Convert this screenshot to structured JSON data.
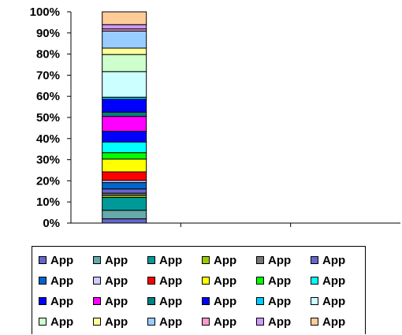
{
  "chart_data": {
    "type": "bar",
    "stacked": "percent",
    "categories": [
      ""
    ],
    "ylim": [
      0,
      100
    ],
    "yticks": [
      "0%",
      "10%",
      "20%",
      "30%",
      "40%",
      "50%",
      "60%",
      "70%",
      "80%",
      "90%",
      "100%"
    ],
    "grid": false,
    "legend_position": "bottom",
    "series": [
      {
        "name": "App",
        "color": "#6666cc",
        "values": [
          2
        ]
      },
      {
        "name": "App",
        "color": "#66aaaa",
        "values": [
          4
        ]
      },
      {
        "name": "App",
        "color": "#009999",
        "values": [
          6
        ]
      },
      {
        "name": "App",
        "color": "#99cc00",
        "values": [
          1
        ]
      },
      {
        "name": "App",
        "color": "#777777",
        "values": [
          1
        ]
      },
      {
        "name": "App",
        "color": "#6666cc",
        "values": [
          2
        ]
      },
      {
        "name": "App",
        "color": "#0066cc",
        "values": [
          3
        ]
      },
      {
        "name": "App",
        "color": "#ccccff",
        "values": [
          1
        ]
      },
      {
        "name": "App",
        "color": "#ff0000",
        "values": [
          4
        ]
      },
      {
        "name": "App",
        "color": "#ffff00",
        "values": [
          6
        ]
      },
      {
        "name": "App",
        "color": "#00ff00",
        "values": [
          3
        ]
      },
      {
        "name": "App",
        "color": "#00ffff",
        "values": [
          5
        ]
      },
      {
        "name": "App",
        "color": "#0000ff",
        "values": [
          5
        ]
      },
      {
        "name": "App",
        "color": "#ff00ff",
        "values": [
          7
        ]
      },
      {
        "name": "App",
        "color": "#008080",
        "values": [
          2
        ]
      },
      {
        "name": "App",
        "color": "#0000ff",
        "values": [
          6
        ]
      },
      {
        "name": "App",
        "color": "#00ccff",
        "values": [
          1
        ]
      },
      {
        "name": "App",
        "color": "#ccffff",
        "values": [
          12
        ]
      },
      {
        "name": "App",
        "color": "#ccffcc",
        "values": [
          8
        ]
      },
      {
        "name": "App",
        "color": "#ffff99",
        "values": [
          3
        ]
      },
      {
        "name": "App",
        "color": "#99ccff",
        "values": [
          8
        ]
      },
      {
        "name": "App",
        "color": "#ff99cc",
        "values": [
          1
        ]
      },
      {
        "name": "App",
        "color": "#cc99ff",
        "values": [
          2
        ]
      },
      {
        "name": "App",
        "color": "#ffcc99",
        "values": [
          6
        ]
      }
    ]
  }
}
